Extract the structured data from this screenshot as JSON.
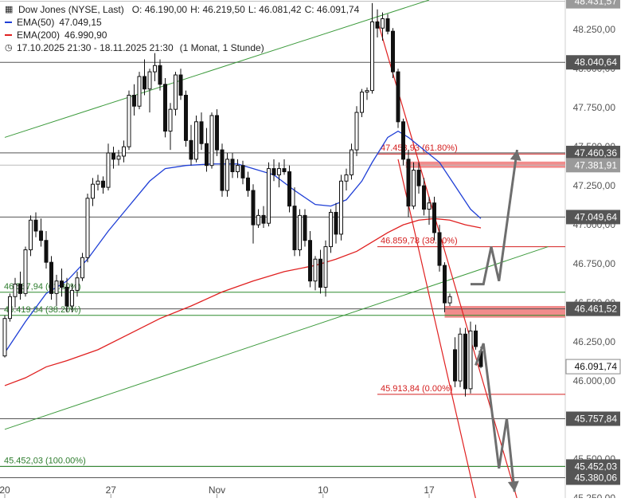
{
  "legend": {
    "instrument": "Dow Jones (NYSE, Last)",
    "ohlc": {
      "o": "O: 46.190,00",
      "h": "H: 46.219,50",
      "l": "L: 46.081,42",
      "c": "C: 46.091,74"
    },
    "ema50": {
      "label": "EMA(50)",
      "value": "47.049,15",
      "color": "#1f3fd6"
    },
    "ema200": {
      "label": "EMA(200)",
      "value": "46.990,90",
      "color": "#e02020"
    },
    "period": "17.10.2025 21:30 - 18.11.2025 21:30",
    "interval": "(1 Monat, 1 Stunde)"
  },
  "chart_data": {
    "type": "candlestick",
    "instrument": "Dow Jones (NYSE, Last)",
    "y_range": [
      45250,
      48440
    ],
    "y_ticks": [
      {
        "value": 45250,
        "label": "45.250,00"
      },
      {
        "value": 45500,
        "label": "45.500,00"
      },
      {
        "value": 45750,
        "label": "45.750,00"
      },
      {
        "value": 46000,
        "label": "46.000,00"
      },
      {
        "value": 46250,
        "label": "46.250,00"
      },
      {
        "value": 46500,
        "label": "46.500,00"
      },
      {
        "value": 46750,
        "label": "46.750,00"
      },
      {
        "value": 47000,
        "label": "47.000,00"
      },
      {
        "value": 47250,
        "label": "47.250,00"
      },
      {
        "value": 47500,
        "label": "47.500,00"
      },
      {
        "value": 47750,
        "label": "47.750,00"
      },
      {
        "value": 48000,
        "label": "48.000,00"
      },
      {
        "value": 48250,
        "label": "48.250,00"
      }
    ],
    "x_ticks": [
      {
        "t": 0,
        "label": "20"
      },
      {
        "t": 20.5,
        "label": "27"
      },
      {
        "t": 41,
        "label": "Nov"
      },
      {
        "t": 61.5,
        "label": "10"
      },
      {
        "t": 82,
        "label": "17"
      }
    ],
    "x_range": [
      0,
      105
    ],
    "price_levels": [
      {
        "value": 48431.57,
        "label": "48.431,57",
        "style": "light"
      },
      {
        "value": 48040.64,
        "label": "48.040,64",
        "style": "dark"
      },
      {
        "value": 47460.36,
        "label": "47.460,36",
        "style": "dark"
      },
      {
        "value": 47381.91,
        "label": "47.381,91",
        "style": "light"
      },
      {
        "value": 47049.64,
        "label": "47.049,64",
        "style": "dark"
      },
      {
        "value": 46461.52,
        "label": "46.461,52",
        "style": "dark"
      },
      {
        "value": 46091.74,
        "label": "46.091,74",
        "style": "current"
      },
      {
        "value": 45757.84,
        "label": "45.757,84",
        "style": "dark"
      },
      {
        "value": 45452.03,
        "label": "45.452,03",
        "style": "dark"
      },
      {
        "value": 45380.06,
        "label": "45.380,06",
        "style": "dark"
      }
    ],
    "fib_green": [
      {
        "value": 46567.94,
        "label": "46.567,94 (61.80%)"
      },
      {
        "value": 46419.84,
        "label": "46.419,84 (38.20%)"
      },
      {
        "value": 45452.03,
        "label": "45.452,03 (100.00%)"
      }
    ],
    "fib_red": [
      {
        "value": 47453.93,
        "label": "47.453,93 (61.80%)"
      },
      {
        "value": 46859.78,
        "label": "46.859,78 (38.20%)"
      },
      {
        "value": 45913.84,
        "label": "45.913,84 (0.00%)"
      }
    ],
    "resistance_zones": [
      {
        "from": 47365,
        "to": 47405,
        "t_start": 77.5
      },
      {
        "from": 46405,
        "to": 46480,
        "t_start": 85
      }
    ],
    "candles": [
      {
        "t": 0,
        "o": 46160,
        "h": 46420,
        "l": 46150,
        "c": 46400
      },
      {
        "t": 1,
        "o": 46400,
        "h": 46560,
        "l": 46380,
        "c": 46540
      },
      {
        "t": 2,
        "o": 46540,
        "h": 46660,
        "l": 46470,
        "c": 46620
      },
      {
        "t": 3,
        "o": 46620,
        "h": 46700,
        "l": 46520,
        "c": 46560
      },
      {
        "t": 4,
        "o": 46560,
        "h": 46860,
        "l": 46540,
        "c": 46840
      },
      {
        "t": 5,
        "o": 46840,
        "h": 47060,
        "l": 46800,
        "c": 47030
      },
      {
        "t": 6,
        "o": 47030,
        "h": 47080,
        "l": 46920,
        "c": 46960
      },
      {
        "t": 7,
        "o": 46960,
        "h": 47040,
        "l": 46860,
        "c": 46900
      },
      {
        "t": 8,
        "o": 46900,
        "h": 46960,
        "l": 46720,
        "c": 46760
      },
      {
        "t": 9,
        "o": 46760,
        "h": 46800,
        "l": 46520,
        "c": 46560
      },
      {
        "t": 10,
        "o": 46560,
        "h": 46680,
        "l": 46480,
        "c": 46640
      },
      {
        "t": 11,
        "o": 46640,
        "h": 46720,
        "l": 46540,
        "c": 46600
      },
      {
        "t": 12,
        "o": 46600,
        "h": 46660,
        "l": 46440,
        "c": 46480
      },
      {
        "t": 13,
        "o": 46480,
        "h": 46620,
        "l": 46440,
        "c": 46580
      },
      {
        "t": 14,
        "o": 46580,
        "h": 46700,
        "l": 46540,
        "c": 46660
      },
      {
        "t": 15,
        "o": 46660,
        "h": 46820,
        "l": 46640,
        "c": 46790
      },
      {
        "t": 16,
        "o": 46790,
        "h": 47200,
        "l": 46760,
        "c": 47170
      },
      {
        "t": 17,
        "o": 47170,
        "h": 47300,
        "l": 47120,
        "c": 47260
      },
      {
        "t": 18,
        "o": 47260,
        "h": 47320,
        "l": 47220,
        "c": 47280
      },
      {
        "t": 19,
        "o": 47280,
        "h": 47310,
        "l": 47200,
        "c": 47240
      },
      {
        "t": 20,
        "o": 47240,
        "h": 47520,
        "l": 47220,
        "c": 47460
      },
      {
        "t": 21,
        "o": 47460,
        "h": 47500,
        "l": 47360,
        "c": 47420
      },
      {
        "t": 22,
        "o": 47420,
        "h": 47480,
        "l": 47380,
        "c": 47440
      },
      {
        "t": 23,
        "o": 47440,
        "h": 47540,
        "l": 47400,
        "c": 47500
      },
      {
        "t": 24,
        "o": 47500,
        "h": 47860,
        "l": 47480,
        "c": 47830
      },
      {
        "t": 25,
        "o": 47830,
        "h": 47900,
        "l": 47700,
        "c": 47760
      },
      {
        "t": 26,
        "o": 47760,
        "h": 47980,
        "l": 47740,
        "c": 47950
      },
      {
        "t": 27,
        "o": 47950,
        "h": 48060,
        "l": 47830,
        "c": 47870
      },
      {
        "t": 28,
        "o": 47870,
        "h": 48000,
        "l": 47720,
        "c": 47980
      },
      {
        "t": 29,
        "o": 47980,
        "h": 48100,
        "l": 47920,
        "c": 48020
      },
      {
        "t": 30,
        "o": 48020,
        "h": 48060,
        "l": 47860,
        "c": 47900
      },
      {
        "t": 31,
        "o": 47900,
        "h": 47940,
        "l": 47560,
        "c": 47600
      },
      {
        "t": 32,
        "o": 47600,
        "h": 47780,
        "l": 47480,
        "c": 47740
      },
      {
        "t": 33,
        "o": 47740,
        "h": 47980,
        "l": 47700,
        "c": 47960
      },
      {
        "t": 34,
        "o": 47960,
        "h": 48000,
        "l": 47800,
        "c": 47830
      },
      {
        "t": 35,
        "o": 47830,
        "h": 47860,
        "l": 47500,
        "c": 47540
      },
      {
        "t": 36,
        "o": 47540,
        "h": 47640,
        "l": 47380,
        "c": 47420
      },
      {
        "t": 37,
        "o": 47420,
        "h": 47700,
        "l": 47400,
        "c": 47660
      },
      {
        "t": 38,
        "o": 47660,
        "h": 47720,
        "l": 47480,
        "c": 47520
      },
      {
        "t": 39,
        "o": 47520,
        "h": 47620,
        "l": 47340,
        "c": 47380
      },
      {
        "t": 40,
        "o": 47380,
        "h": 47720,
        "l": 47360,
        "c": 47700
      },
      {
        "t": 41,
        "o": 47700,
        "h": 47740,
        "l": 47440,
        "c": 47480
      },
      {
        "t": 42,
        "o": 47480,
        "h": 47520,
        "l": 47180,
        "c": 47220
      },
      {
        "t": 43,
        "o": 47220,
        "h": 47460,
        "l": 47180,
        "c": 47420
      },
      {
        "t": 44,
        "o": 47420,
        "h": 47460,
        "l": 47300,
        "c": 47340
      },
      {
        "t": 45,
        "o": 47340,
        "h": 47420,
        "l": 47300,
        "c": 47380
      },
      {
        "t": 46,
        "o": 47380,
        "h": 47410,
        "l": 47260,
        "c": 47300
      },
      {
        "t": 47,
        "o": 47300,
        "h": 47340,
        "l": 47180,
        "c": 47220
      },
      {
        "t": 48,
        "o": 47220,
        "h": 47260,
        "l": 46880,
        "c": 47000
      },
      {
        "t": 49,
        "o": 47000,
        "h": 47100,
        "l": 46980,
        "c": 47060
      },
      {
        "t": 50,
        "o": 47060,
        "h": 47120,
        "l": 46980,
        "c": 47010
      },
      {
        "t": 51,
        "o": 47010,
        "h": 47400,
        "l": 46990,
        "c": 47360
      },
      {
        "t": 52,
        "o": 47360,
        "h": 47420,
        "l": 47280,
        "c": 47320
      },
      {
        "t": 53,
        "o": 47320,
        "h": 47400,
        "l": 47240,
        "c": 47360
      },
      {
        "t": 54,
        "o": 47360,
        "h": 47420,
        "l": 47320,
        "c": 47340
      },
      {
        "t": 55,
        "o": 47340,
        "h": 47380,
        "l": 47080,
        "c": 47120
      },
      {
        "t": 56,
        "o": 47120,
        "h": 47240,
        "l": 46800,
        "c": 46840
      },
      {
        "t": 57,
        "o": 46840,
        "h": 47100,
        "l": 46800,
        "c": 47060
      },
      {
        "t": 58,
        "o": 47060,
        "h": 47100,
        "l": 46860,
        "c": 46900
      },
      {
        "t": 59,
        "o": 46900,
        "h": 46960,
        "l": 46600,
        "c": 46640
      },
      {
        "t": 60,
        "o": 46640,
        "h": 46800,
        "l": 46580,
        "c": 46780
      },
      {
        "t": 61,
        "o": 46780,
        "h": 46840,
        "l": 46560,
        "c": 46600
      },
      {
        "t": 62,
        "o": 46600,
        "h": 46900,
        "l": 46540,
        "c": 46860
      },
      {
        "t": 63,
        "o": 46860,
        "h": 47100,
        "l": 46820,
        "c": 47080
      },
      {
        "t": 64,
        "o": 47080,
        "h": 47140,
        "l": 46880,
        "c": 46940
      },
      {
        "t": 65,
        "o": 46940,
        "h": 47320,
        "l": 46900,
        "c": 47280
      },
      {
        "t": 66,
        "o": 47280,
        "h": 47360,
        "l": 47220,
        "c": 47320
      },
      {
        "t": 67,
        "o": 47320,
        "h": 47520,
        "l": 47290,
        "c": 47480
      },
      {
        "t": 68,
        "o": 47480,
        "h": 47760,
        "l": 47440,
        "c": 47720
      },
      {
        "t": 69,
        "o": 47720,
        "h": 47870,
        "l": 47690,
        "c": 47850
      },
      {
        "t": 70,
        "o": 47850,
        "h": 47880,
        "l": 47800,
        "c": 47860
      },
      {
        "t": 71,
        "o": 47860,
        "h": 48420,
        "l": 47840,
        "c": 48300
      },
      {
        "t": 72,
        "o": 48300,
        "h": 48380,
        "l": 48200,
        "c": 48260
      },
      {
        "t": 73,
        "o": 48260,
        "h": 48360,
        "l": 48180,
        "c": 48320
      },
      {
        "t": 74,
        "o": 48320,
        "h": 48350,
        "l": 48220,
        "c": 48240
      },
      {
        "t": 75,
        "o": 48240,
        "h": 48260,
        "l": 47940,
        "c": 47980
      },
      {
        "t": 76,
        "o": 47980,
        "h": 48000,
        "l": 47620,
        "c": 47660
      },
      {
        "t": 77,
        "o": 47660,
        "h": 47680,
        "l": 47380,
        "c": 47420
      },
      {
        "t": 78,
        "o": 47420,
        "h": 47480,
        "l": 47050,
        "c": 47120
      },
      {
        "t": 79,
        "o": 47120,
        "h": 47400,
        "l": 47100,
        "c": 47350
      },
      {
        "t": 80,
        "o": 47350,
        "h": 47400,
        "l": 47200,
        "c": 47250
      },
      {
        "t": 81,
        "o": 47250,
        "h": 47300,
        "l": 47060,
        "c": 47100
      },
      {
        "t": 82,
        "o": 47100,
        "h": 47180,
        "l": 47000,
        "c": 47140
      },
      {
        "t": 83,
        "o": 47140,
        "h": 47180,
        "l": 46900,
        "c": 46950
      },
      {
        "t": 84,
        "o": 46950,
        "h": 47000,
        "l": 46700,
        "c": 46740
      },
      {
        "t": 85,
        "o": 46740,
        "h": 46760,
        "l": 46440,
        "c": 46500
      },
      {
        "t": 86,
        "o": 46500,
        "h": 46560,
        "l": 46480,
        "c": 46540
      },
      {
        "t": 87,
        "o": 46200,
        "h": 46280,
        "l": 45960,
        "c": 46000
      },
      {
        "t": 88,
        "o": 46000,
        "h": 46340,
        "l": 45960,
        "c": 46300
      },
      {
        "t": 89,
        "o": 46300,
        "h": 46340,
        "l": 45900,
        "c": 45950
      },
      {
        "t": 90,
        "o": 45950,
        "h": 46380,
        "l": 45920,
        "c": 46320
      },
      {
        "t": 91,
        "o": 46320,
        "h": 46360,
        "l": 46200,
        "c": 46220
      },
      {
        "t": 92,
        "o": 46190,
        "h": 46219.5,
        "l": 46081.42,
        "c": 46091.74
      }
    ],
    "ema50": [
      {
        "t": 0,
        "v": 46180
      },
      {
        "t": 4,
        "v": 46380
      },
      {
        "t": 8,
        "v": 46560
      },
      {
        "t": 12,
        "v": 46640
      },
      {
        "t": 16,
        "v": 46780
      },
      {
        "t": 20,
        "v": 46960
      },
      {
        "t": 24,
        "v": 47120
      },
      {
        "t": 28,
        "v": 47280
      },
      {
        "t": 31,
        "v": 47360
      },
      {
        "t": 35,
        "v": 47380
      },
      {
        "t": 40,
        "v": 47390
      },
      {
        "t": 45,
        "v": 47390
      },
      {
        "t": 48,
        "v": 47360
      },
      {
        "t": 52,
        "v": 47320
      },
      {
        "t": 56,
        "v": 47220
      },
      {
        "t": 60,
        "v": 47130
      },
      {
        "t": 63,
        "v": 47120
      },
      {
        "t": 66,
        "v": 47160
      },
      {
        "t": 69,
        "v": 47280
      },
      {
        "t": 71,
        "v": 47400
      },
      {
        "t": 74,
        "v": 47560
      },
      {
        "t": 76,
        "v": 47600
      },
      {
        "t": 78,
        "v": 47560
      },
      {
        "t": 81,
        "v": 47480
      },
      {
        "t": 84,
        "v": 47400
      },
      {
        "t": 87,
        "v": 47250
      },
      {
        "t": 90,
        "v": 47100
      },
      {
        "t": 92,
        "v": 47040
      }
    ],
    "ema200": [
      {
        "t": 0,
        "v": 45970
      },
      {
        "t": 4,
        "v": 46020
      },
      {
        "t": 8,
        "v": 46090
      },
      {
        "t": 12,
        "v": 46130
      },
      {
        "t": 18,
        "v": 46200
      },
      {
        "t": 24,
        "v": 46300
      },
      {
        "t": 30,
        "v": 46400
      },
      {
        "t": 36,
        "v": 46480
      },
      {
        "t": 42,
        "v": 46570
      },
      {
        "t": 48,
        "v": 46640
      },
      {
        "t": 54,
        "v": 46700
      },
      {
        "t": 60,
        "v": 46740
      },
      {
        "t": 64,
        "v": 46780
      },
      {
        "t": 68,
        "v": 46830
      },
      {
        "t": 71,
        "v": 46890
      },
      {
        "t": 74,
        "v": 46950
      },
      {
        "t": 77,
        "v": 47000
      },
      {
        "t": 80,
        "v": 47030
      },
      {
        "t": 83,
        "v": 47040
      },
      {
        "t": 86,
        "v": 47030
      },
      {
        "t": 89,
        "v": 47000
      },
      {
        "t": 92,
        "v": 46980
      }
    ],
    "trendlines_green": [
      {
        "t1": 0,
        "v1": 47560,
        "t2": 82,
        "v2": 48440
      },
      {
        "t1": 0,
        "v1": 45690,
        "t2": 105,
        "v2": 46860
      }
    ],
    "trendlines_red": [
      {
        "t1": 72,
        "v1": 48310,
        "t2": 99,
        "v2": 45245
      },
      {
        "t1": 76,
        "v1": 47420,
        "t2": 91,
        "v2": 45245
      }
    ],
    "projection_upper": [
      {
        "t": 90,
        "v": 46620
      },
      {
        "t": 92.5,
        "v": 46620
      },
      {
        "t": 94,
        "v": 46860
      },
      {
        "t": 95.5,
        "v": 46640
      },
      {
        "t": 99,
        "v": 47480
      }
    ],
    "projection_lower": [
      {
        "t": 91,
        "v": 46100
      },
      {
        "t": 92.5,
        "v": 46240
      },
      {
        "t": 95.5,
        "v": 45440
      },
      {
        "t": 97,
        "v": 45760
      },
      {
        "t": 98.5,
        "v": 45290
      }
    ]
  }
}
